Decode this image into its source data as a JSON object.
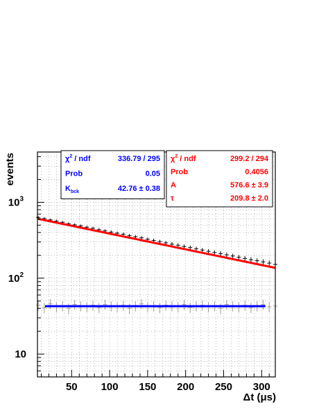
{
  "chart_data": {
    "type": "scatter",
    "title": "",
    "xlabel": "Δt (μs)",
    "ylabel": "events",
    "xlim": [
      5,
      318
    ],
    "ylim": [
      5,
      4600
    ],
    "yscale": "log",
    "grid": true,
    "x_ticks": [
      {
        "value": 50,
        "label": "50"
      },
      {
        "value": 100,
        "label": "100"
      },
      {
        "value": 150,
        "label": "150"
      },
      {
        "value": 200,
        "label": "200"
      },
      {
        "value": 250,
        "label": "250"
      },
      {
        "value": 300,
        "label": "300"
      }
    ],
    "y_ticks": [
      {
        "value": 10,
        "label": "10"
      },
      {
        "value": 100,
        "base": "10",
        "exp": "2"
      },
      {
        "value": 1000,
        "base": "10",
        "exp": "3"
      }
    ],
    "series": [
      {
        "color": "#000000",
        "x": [
          6,
          14,
          22,
          30,
          38,
          46,
          54,
          62,
          70,
          78,
          86,
          94,
          102,
          110,
          118,
          126,
          134,
          142,
          150,
          158,
          166,
          174,
          182,
          190,
          198,
          206,
          214,
          222,
          230,
          238,
          246,
          254,
          262,
          270,
          278,
          286,
          294,
          302,
          310,
          318
        ],
        "y": [
          632,
          610,
          586,
          565,
          545,
          522,
          505,
          488,
          470,
          455,
          436,
          420,
          405,
          392,
          380,
          364,
          352,
          340,
          326,
          314,
          303,
          292,
          281,
          272,
          262,
          253,
          244,
          235,
          226,
          218,
          211,
          203,
          196,
          189,
          182,
          175,
          170,
          164,
          158,
          152
        ]
      },
      {
        "color": "#999999",
        "x": [
          6,
          14,
          22,
          30,
          38,
          46,
          54,
          62,
          70,
          78,
          86,
          94,
          102,
          110,
          118,
          126,
          134,
          142,
          150,
          158,
          166,
          174,
          182,
          190,
          198,
          206,
          214,
          222,
          230,
          238,
          246,
          254,
          262,
          270,
          278,
          286,
          294,
          302,
          310,
          318
        ],
        "y": [
          44,
          41,
          46,
          42,
          43,
          40,
          45,
          43,
          42,
          44,
          41,
          45,
          43,
          42,
          44,
          40,
          43,
          46,
          42,
          43,
          41,
          44,
          43,
          42,
          45,
          41,
          43,
          44,
          42,
          43,
          40,
          45,
          43,
          42,
          44,
          41,
          43,
          45,
          42,
          43
        ]
      }
    ],
    "fits": [
      {
        "type": "exponential",
        "color": "#ff0000",
        "A": 576.6,
        "tau": 209.8,
        "x_range": [
          6,
          318
        ]
      },
      {
        "type": "constant",
        "color": "#0000ff",
        "K": 42.76,
        "x_range": [
          15,
          305
        ]
      }
    ],
    "stat_boxes": [
      {
        "color": "#0000ff",
        "rows": [
          {
            "label": "χ",
            "label_sup": "2",
            "label_rest": " / ndf",
            "value": "336.79 / 295"
          },
          {
            "label": "Prob",
            "value": "0.05"
          },
          {
            "label": "K",
            "label_sub": "bck",
            "value": "42.76 ± 0.38"
          }
        ]
      },
      {
        "color": "#ff0000",
        "rows": [
          {
            "label": "χ",
            "label_sup": "2",
            "label_rest": " / ndf",
            "value": "299.2 / 294"
          },
          {
            "label": "Prob",
            "value": "0.4056"
          },
          {
            "label": "A",
            "value": "576.6 ± 3.9"
          },
          {
            "label": "τ",
            "value": "209.8 ± 2.0"
          }
        ]
      }
    ]
  }
}
